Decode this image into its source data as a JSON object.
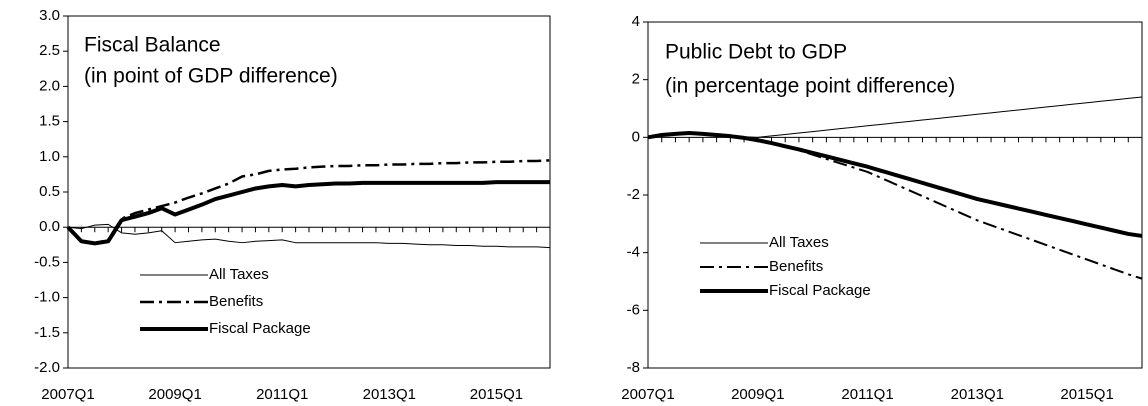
{
  "chart_data": [
    {
      "type": "line",
      "title": "Fiscal Balance",
      "subtitle": "(in point of GDP difference)",
      "categories": [
        "2007Q1",
        null,
        null,
        null,
        null,
        null,
        null,
        null,
        "2009Q1",
        null,
        null,
        null,
        null,
        null,
        null,
        null,
        "2011Q1",
        null,
        null,
        null,
        null,
        null,
        null,
        null,
        "2013Q1",
        null,
        null,
        null,
        null,
        null,
        null,
        null,
        "2015Q1",
        null,
        null,
        null,
        null
      ],
      "ylim": [
        -2,
        3
      ],
      "yticks": [
        {
          "value": -2,
          "label": "-2.0"
        },
        -1.5,
        {
          "value": -1,
          "label": "-1.0"
        },
        -0.5,
        {
          "value": 0,
          "label": "0.0"
        },
        0.5,
        {
          "value": 1,
          "label": "1.0"
        },
        1.5,
        {
          "value": 2,
          "label": "2.0"
        },
        2.5,
        {
          "value": 3,
          "label": "3.0"
        }
      ],
      "series": [
        {
          "name": "All Taxes",
          "color": "#000000",
          "line_style": "solid",
          "line_width": 1,
          "values": [
            0,
            -0.02,
            0.03,
            0.04,
            -0.08,
            -0.1,
            -0.08,
            -0.05,
            -0.22,
            -0.2,
            -0.18,
            -0.17,
            -0.2,
            -0.22,
            -0.2,
            -0.19,
            -0.18,
            -0.22,
            -0.22,
            -0.22,
            -0.22,
            -0.22,
            -0.22,
            -0.22,
            -0.23,
            -0.23,
            -0.24,
            -0.25,
            -0.25,
            -0.26,
            -0.26,
            -0.27,
            -0.27,
            -0.28,
            -0.28,
            -0.28,
            -0.29
          ]
        },
        {
          "name": "Benefits",
          "color": "#000000",
          "line_style": "dash-dot",
          "line_width": 2.5,
          "values": [
            0,
            -0.2,
            -0.23,
            -0.18,
            0.12,
            0.2,
            0.25,
            0.3,
            0.35,
            0.42,
            0.48,
            0.55,
            0.62,
            0.72,
            0.75,
            0.8,
            0.82,
            0.83,
            0.85,
            0.86,
            0.87,
            0.87,
            0.88,
            0.88,
            0.89,
            0.89,
            0.9,
            0.9,
            0.91,
            0.91,
            0.92,
            0.92,
            0.93,
            0.93,
            0.94,
            0.94,
            0.95
          ]
        },
        {
          "name": "Fiscal Package",
          "color": "#000000",
          "line_style": "solid",
          "line_width": 4,
          "values": [
            0,
            -0.2,
            -0.23,
            -0.2,
            0.1,
            0.15,
            0.2,
            0.27,
            0.18,
            0.25,
            0.32,
            0.4,
            0.45,
            0.5,
            0.55,
            0.58,
            0.6,
            0.58,
            0.6,
            0.61,
            0.62,
            0.62,
            0.63,
            0.63,
            0.63,
            0.63,
            0.63,
            0.63,
            0.63,
            0.63,
            0.63,
            0.63,
            0.64,
            0.64,
            0.64,
            0.64,
            0.64
          ]
        }
      ]
    },
    {
      "type": "line",
      "title": "Public Debt to GDP",
      "subtitle": "(in percentage point difference)",
      "categories": [
        "2007Q1",
        null,
        null,
        null,
        null,
        null,
        null,
        null,
        "2009Q1",
        null,
        null,
        null,
        null,
        null,
        null,
        null,
        "2011Q1",
        null,
        null,
        null,
        null,
        null,
        null,
        null,
        "2013Q1",
        null,
        null,
        null,
        null,
        null,
        null,
        null,
        "2015Q1",
        null,
        null,
        null,
        null
      ],
      "ylim": [
        -8,
        4
      ],
      "yticks": [
        -8,
        -6,
        -4,
        -2,
        0,
        2,
        4
      ],
      "series": [
        {
          "name": "All Taxes",
          "color": "#000000",
          "line_style": "solid",
          "line_width": 1,
          "values": [
            0,
            0.05,
            0.1,
            0.12,
            0.1,
            0.07,
            0.04,
            0.02,
            0,
            0.05,
            0.1,
            0.15,
            0.2,
            0.25,
            0.3,
            0.35,
            0.4,
            0.45,
            0.5,
            0.55,
            0.6,
            0.65,
            0.7,
            0.75,
            0.8,
            0.85,
            0.9,
            0.95,
            1.0,
            1.05,
            1.1,
            1.15,
            1.2,
            1.25,
            1.3,
            1.35,
            1.4
          ]
        },
        {
          "name": "Benefits",
          "color": "#000000",
          "line_style": "dash-dot",
          "line_width": 2,
          "values": [
            0,
            0.08,
            0.12,
            0.15,
            0.12,
            0.08,
            0.04,
            -0.02,
            -0.1,
            -0.2,
            -0.32,
            -0.45,
            -0.6,
            -0.75,
            -0.9,
            -1.05,
            -1.2,
            -1.41,
            -1.62,
            -1.83,
            -2.04,
            -2.25,
            -2.46,
            -2.67,
            -2.88,
            -3.05,
            -3.22,
            -3.39,
            -3.56,
            -3.73,
            -3.9,
            -4.07,
            -4.24,
            -4.41,
            -4.58,
            -4.75,
            -4.9
          ]
        },
        {
          "name": "Fiscal Package",
          "color": "#000000",
          "line_style": "solid",
          "line_width": 4,
          "values": [
            0,
            0.08,
            0.12,
            0.15,
            0.12,
            0.08,
            0.04,
            -0.02,
            -0.1,
            -0.2,
            -0.31,
            -0.42,
            -0.54,
            -0.66,
            -0.78,
            -0.9,
            -1.02,
            -1.16,
            -1.3,
            -1.44,
            -1.58,
            -1.72,
            -1.86,
            -2.0,
            -2.14,
            -2.25,
            -2.36,
            -2.47,
            -2.58,
            -2.69,
            -2.8,
            -2.91,
            -3.02,
            -3.13,
            -3.24,
            -3.35,
            -3.42
          ]
        }
      ]
    }
  ]
}
